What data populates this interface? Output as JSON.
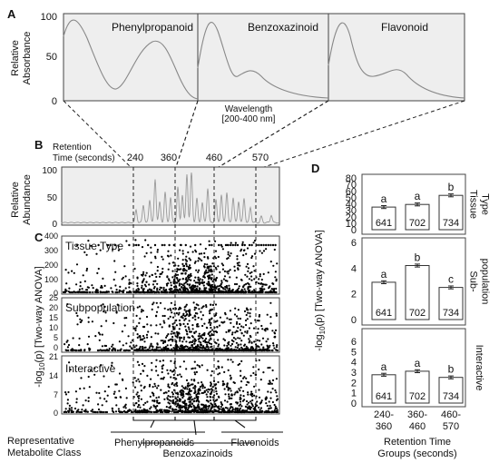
{
  "figure": {
    "panel_labels": {
      "a": "A",
      "b": "B",
      "c": "C",
      "d": "D"
    },
    "metabolite_class_label": [
      "Representative",
      "Metabolite Class"
    ],
    "classes": [
      "Phenylpropanoids",
      "Benzoxazinoids",
      "Flavonoids"
    ]
  },
  "panel_a": {
    "ylabel": [
      "Relative",
      "Absorbance"
    ],
    "y_ticks": [
      "100",
      "50",
      "0"
    ],
    "spectra": [
      "Phenylpropanoid",
      "Benzoxazinoid",
      "Flavonoid"
    ],
    "xlabel": [
      "Wavelength",
      "[200-400 nm]"
    ]
  },
  "panel_b": {
    "retention_label": [
      "Retention",
      "Time (seconds)"
    ],
    "retention_marks": [
      "240",
      "360",
      "460",
      "570"
    ],
    "ylabel": [
      "Relative",
      "Abundance"
    ],
    "y_ticks": [
      "100",
      "50",
      "0"
    ]
  },
  "panel_c": {
    "ylabel": "-log10(p) [Two-way ANOVA]",
    "panels": [
      {
        "title": "Tissue Type",
        "ticks": [
          "400",
          "300",
          "200",
          "100",
          "0"
        ]
      },
      {
        "title": "Subpopulation",
        "ticks": [
          "25",
          "20",
          "15",
          "10",
          "5",
          "0"
        ]
      },
      {
        "title": "Interactive",
        "ticks": [
          "21",
          "14",
          "7",
          "0"
        ]
      }
    ]
  },
  "chart_data": [
    {
      "type": "bar",
      "title": "Tissue Type",
      "categories": [
        "240-360",
        "360-460",
        "460-570"
      ],
      "values": [
        35,
        39,
        53
      ],
      "counts": [
        "641",
        "702",
        "734"
      ],
      "letters": [
        "a",
        "a",
        "b"
      ],
      "ylim": [
        0,
        80
      ],
      "y_ticks": [
        "0",
        "10",
        "20",
        "30",
        "40",
        "50",
        "60",
        "70",
        "80"
      ],
      "side_label": [
        "Tissue",
        "Type"
      ]
    },
    {
      "type": "bar",
      "title": "Subpopulation",
      "categories": [
        "240-360",
        "360-460",
        "460-570"
      ],
      "values": [
        2.9,
        4.2,
        2.5
      ],
      "counts": [
        "641",
        "702",
        "734"
      ],
      "letters": [
        "a",
        "b",
        "c"
      ],
      "ylim": [
        0,
        6
      ],
      "y_ticks": [
        "0",
        "2",
        "4",
        "6"
      ],
      "side_label": [
        "Sub-",
        "population"
      ]
    },
    {
      "type": "bar",
      "title": "Interactive",
      "categories": [
        "240-360",
        "360-460",
        "460-570"
      ],
      "values": [
        2.75,
        3.1,
        2.5
      ],
      "counts": [
        "641",
        "702",
        "734"
      ],
      "letters": [
        "a",
        "a",
        "b"
      ],
      "ylim": [
        0,
        6
      ],
      "y_ticks": [
        "0",
        "1",
        "2",
        "3",
        "4",
        "5",
        "6"
      ],
      "side_label": [
        "Interactive"
      ]
    }
  ],
  "panel_d": {
    "ylabel": "-log10(p) [Two-way ANOVA]",
    "x_tick_lines": [
      [
        "240-",
        "360"
      ],
      [
        "360-",
        "460"
      ],
      [
        "460-",
        "570"
      ]
    ],
    "xlabel": [
      "Retention Time",
      "Groups (seconds)"
    ]
  }
}
